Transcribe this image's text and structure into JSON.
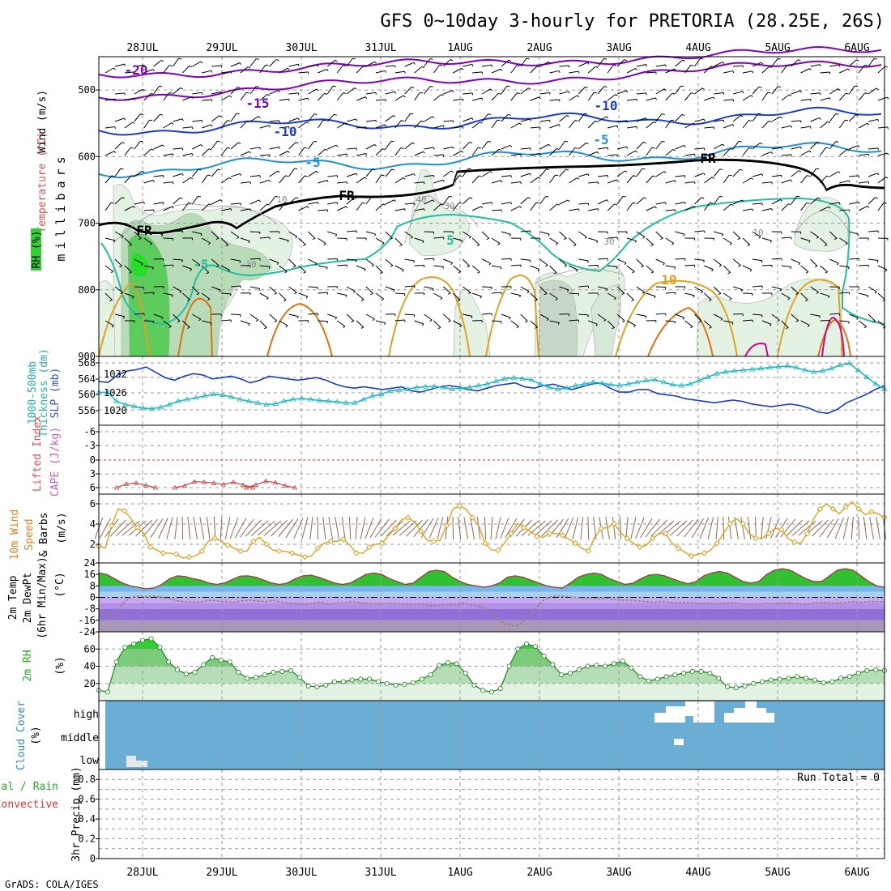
{
  "title": "GFS 0~10day 3-hourly for PRETORIA (28.25E, 26S)",
  "footer": "GrADS: COLA/IGES",
  "dates": [
    "28JUL",
    "29JUL",
    "30JUL",
    "31JUL",
    "1AUG",
    "2AUG",
    "3AUG",
    "4AUG",
    "5AUG",
    "6AUG"
  ],
  "colors": {
    "purple": "#8000c0",
    "blue": "#1a3cd0",
    "lightblue": "#1e90d8",
    "teal": "#20c0a0",
    "orange": "#e0a020",
    "darkorange": "#e07010",
    "magenta": "#d00090",
    "rhgreen": "#30d030",
    "cloud": "#6aaed6",
    "rhlight": "#e4f2e4",
    "rhmid": "#b8dcb8"
  },
  "chart_data": [
    {
      "type": "heatmap",
      "name": "upper-air",
      "ylabel_left": [
        "Wind (m/s)",
        "Temperature (°C)",
        "RH (%)"
      ],
      "ylabel": "millibars",
      "ylim": [
        900,
        450
      ],
      "yticks": [
        500,
        600,
        700,
        800,
        900
      ],
      "contour_labels": [
        "-20",
        "-15",
        "-10",
        "-10",
        "-5",
        "-5",
        "FR",
        "FR",
        "FR",
        "5",
        "-5",
        "10",
        "10",
        "30",
        "10",
        "30",
        "30",
        "40"
      ]
    },
    {
      "type": "line",
      "name": "thickness-slp",
      "ylabel": [
        "1000-500mb",
        "Thickness (dm)",
        "SLP (mb)"
      ],
      "yticks_left": [
        "568",
        "564",
        "560",
        "556"
      ],
      "yticks_right": [
        "1032",
        "1026",
        "1020"
      ],
      "series": [
        {
          "name": "SLP",
          "ylim": [
            1012,
            1038
          ],
          "values": [
            1028.5,
            1028.2,
            1031.0,
            1032.5,
            1033.0,
            1034.0,
            1032.0,
            1030.0,
            1029.0,
            1030.5,
            1031.5,
            1031.0,
            1029.5,
            1030.0,
            1030.5,
            1029.5,
            1028.0,
            1029.0,
            1030.5,
            1030.0,
            1029.5,
            1029.0,
            1029.5,
            1030.0,
            1029.0,
            1027.5,
            1026.5,
            1026.0,
            1026.5,
            1026.0,
            1025.5,
            1026.0,
            1026.5,
            1025.0,
            1024.5,
            1025.5,
            1026.5,
            1027.0,
            1026.5,
            1025.5,
            1025.0,
            1026.0,
            1027.0,
            1027.5,
            1028.0,
            1026.5,
            1026.0,
            1027.0,
            1027.5,
            1026.5,
            1025.5,
            1026.5,
            1027.5,
            1028.0,
            1026.0,
            1024.5,
            1024.5,
            1025.5,
            1025.5,
            1024.0,
            1023.5,
            1023.0,
            1022.0,
            1021.5,
            1021.0,
            1020.5,
            1021.0,
            1021.5,
            1021.0,
            1020.0,
            1019.5,
            1019.0,
            1019.5,
            1020.0,
            1019.5,
            1018.5,
            1017.0,
            1016.5,
            1018.0,
            1020.5,
            1022.0,
            1023.5,
            1025.5,
            1027.0
          ]
        },
        {
          "name": "Thickness",
          "ylim": [
            550,
            570
          ],
          "values": [
            559.5,
            559.6,
            557.0,
            556.0,
            555.5,
            555.0,
            554.8,
            555.2,
            556.0,
            557.0,
            557.5,
            558.0,
            558.5,
            559.0,
            558.8,
            558.2,
            557.5,
            557.0,
            556.5,
            556.0,
            556.2,
            557.0,
            557.5,
            557.8,
            557.5,
            557.2,
            557.0,
            556.8,
            556.5,
            556.5,
            557.5,
            558.5,
            559.0,
            560.0,
            560.2,
            560.5,
            561.0,
            561.2,
            561.3,
            561.0,
            560.5,
            560.8,
            561.0,
            561.5,
            562.0,
            562.8,
            563.5,
            563.8,
            563.5,
            563.2,
            562.0,
            561.0,
            560.5,
            560.8,
            561.5,
            562.0,
            562.5,
            562.2,
            561.8,
            561.5,
            562.0,
            562.5,
            563.0,
            563.2,
            562.5,
            561.8,
            561.5,
            562.0,
            563.0,
            564.0,
            565.0,
            565.5,
            565.8,
            566.0,
            566.2,
            566.5,
            566.8,
            567.0,
            567.2,
            566.8,
            566.0,
            565.5,
            565.8,
            566.5,
            567.5,
            568.0,
            566.0,
            564.0,
            562.0,
            560.5
          ]
        }
      ]
    },
    {
      "type": "line",
      "name": "lifted-index-cape",
      "ylabel": [
        "Lifted Index",
        "CAPE (J/kg)"
      ],
      "yticks": [
        "-6",
        "-3",
        "0",
        "3",
        "6"
      ],
      "ylim": [
        6,
        -6
      ],
      "series": [
        {
          "name": "Lifted Index",
          "segments": [
            [
              6.0,
              5.2,
              5.0,
              5.5,
              6.0
            ],
            [
              6.0,
              5.6,
              4.7,
              4.8,
              5.0,
              5.3,
              4.8,
              5.4,
              6.0
            ],
            [
              6.0,
              5.4,
              4.6,
              4.9,
              5.6,
              6.0
            ]
          ]
        }
      ]
    },
    {
      "type": "line",
      "name": "10m-wind",
      "ylabel": [
        "10m Wind",
        "Speed",
        "& Barbs",
        "(m/s)"
      ],
      "yticks": [
        "6",
        "4",
        "2"
      ],
      "ylim": [
        0,
        7
      ],
      "series": [
        {
          "name": "Speed",
          "values": [
            1.7,
            1.5,
            3.8,
            5.5,
            5.3,
            4.5,
            3.6,
            3.0,
            1.6,
            1.3,
            1.0,
            1.0,
            0.9,
            0.5,
            0.6,
            0.7,
            1.2,
            2.2,
            2.5,
            2.2,
            1.8,
            1.5,
            1.2,
            1.2,
            2.2,
            2.6,
            1.9,
            1.3,
            1.2,
            1.2,
            1.0,
            0.8,
            0.6,
            0.7,
            1.5,
            2.0,
            2.2,
            2.2,
            2.4,
            1.8,
            1.0,
            1.0,
            1.6,
            1.9,
            2.0,
            2.8,
            3.5,
            4.4,
            4.6,
            4.2,
            3.2,
            2.3,
            2.2,
            2.3,
            3.8,
            5.5,
            5.8,
            5.5,
            4.6,
            3.8,
            2.0,
            1.3,
            1.3,
            2.0,
            3.0,
            4.0,
            3.6,
            3.2,
            2.7,
            2.6,
            3.0,
            3.0,
            2.8,
            2.4,
            2.0,
            1.5,
            1.2,
            2.6,
            3.5,
            3.6,
            4.0,
            3.1,
            2.5,
            2.0,
            1.6,
            1.8,
            2.5,
            3.0,
            3.0,
            2.0,
            1.5,
            1.1,
            0.7,
            0.9,
            1.0,
            1.3,
            2.0,
            3.0,
            4.0,
            4.5,
            4.0,
            3.0,
            2.5,
            2.5,
            3.0,
            3.5,
            3.4,
            2.5,
            2.1,
            2.0,
            3.0,
            4.5,
            5.5,
            6.0,
            5.5,
            5.0,
            5.7,
            6.2,
            5.5,
            4.9,
            5.2,
            5.0,
            4.6
          ]
        }
      ]
    },
    {
      "type": "area",
      "name": "2m-temp",
      "ylabel": [
        "2m Temp",
        "2m DewPt",
        "(6hr Min/Max)",
        "(°C)"
      ],
      "yticks": [
        "24",
        "16",
        "8",
        "0",
        "-8",
        "-16",
        "-24"
      ],
      "ylim": [
        -24,
        24
      ],
      "series": [
        {
          "name": "Temperature",
          "values": [
            17,
            16,
            13,
            10,
            8,
            7,
            6,
            6.5,
            9,
            13,
            15,
            14.5,
            13,
            12,
            10,
            9,
            10,
            12.5,
            14.8,
            15,
            14,
            12,
            10,
            9,
            10,
            13,
            15,
            15.5,
            14,
            12,
            10,
            9,
            10,
            13,
            16,
            17,
            16,
            13,
            11,
            9,
            10,
            14,
            18,
            19,
            18,
            14,
            11,
            9,
            8,
            7,
            8,
            10,
            14,
            15,
            14,
            12,
            10,
            8,
            7,
            6.5,
            10,
            14,
            16,
            17,
            16,
            13,
            11,
            9,
            10,
            13,
            15.5,
            16,
            15,
            13,
            11,
            9.5,
            11,
            15,
            17,
            18,
            17,
            14,
            11,
            10,
            11,
            16,
            19,
            20,
            19,
            16,
            13,
            11,
            11,
            15,
            19,
            20,
            19,
            15,
            11,
            8,
            7
          ]
        },
        {
          "name": "DewPoint",
          "values": [
            -8,
            -12,
            -15,
            -4,
            0,
            1,
            0.5,
            1,
            0,
            -1,
            -2.5,
            -3,
            -3.5,
            -3,
            -2,
            -2.5,
            -3,
            -3.5,
            -2.5,
            -2,
            -2.5,
            -3,
            -2,
            -3.5,
            -4,
            -4.5,
            -5,
            -4,
            -3.5,
            -5,
            -4,
            -3.5,
            -3,
            -4,
            -4,
            -4.5,
            -4.5,
            -4,
            -4.5,
            -5,
            -4.5,
            -5,
            -6,
            -5.5,
            -5,
            -5,
            -4,
            -5,
            -6,
            -9,
            -14,
            -18,
            -20,
            -19,
            -14,
            -8,
            -2,
            0.5,
            1,
            0.5,
            0,
            -0.5,
            -0.5,
            -1,
            -0.5,
            -1.5,
            -2,
            -2,
            -2.5,
            -3,
            -3.5,
            -3,
            -3.5,
            -4,
            -3.5,
            -4,
            -4.5,
            -4,
            -4.5,
            -4,
            -3.5,
            -4.5,
            -5,
            -5,
            -4,
            -4.5,
            -4,
            -4,
            -4.5,
            -5,
            -4,
            -3.5,
            -4,
            -4,
            -3.5,
            -3,
            -3.5,
            -3,
            -3,
            -3
          ]
        }
      ]
    },
    {
      "type": "area",
      "name": "2m-rh",
      "ylabel": [
        "2m RH",
        "(%)"
      ],
      "yticks": [
        "60",
        "40",
        "20"
      ],
      "ylim": [
        0,
        80
      ],
      "series": [
        {
          "name": "RH",
          "values": [
            12,
            10,
            45,
            62,
            66,
            70,
            72,
            62,
            45,
            36,
            31,
            33,
            42,
            50,
            47,
            45,
            33,
            26,
            27,
            30,
            33,
            34,
            35,
            27,
            17,
            16,
            18,
            22,
            22,
            24,
            25,
            25,
            22,
            20,
            18,
            19,
            21,
            25,
            30,
            41,
            44,
            43,
            32,
            18,
            12,
            10,
            14,
            40,
            60,
            66,
            63,
            52,
            42,
            30,
            32,
            36,
            40,
            41,
            40,
            43,
            46,
            38,
            28,
            23,
            25,
            28,
            30,
            32,
            34,
            34,
            32,
            26,
            16,
            15,
            17,
            20,
            22,
            24,
            25,
            26,
            28,
            26,
            24,
            21,
            22,
            26,
            28,
            32,
            35,
            36,
            35
          ]
        }
      ]
    },
    {
      "type": "heatmap",
      "name": "cloud-cover",
      "ylabel": [
        "Cloud Cover",
        "(%)"
      ],
      "levels": [
        "high",
        "middle",
        "low"
      ]
    },
    {
      "type": "bar",
      "name": "precip",
      "ylabel": [
        "3hr Precip (mm)"
      ],
      "ylabel_left": [
        "Total / Rain",
        "Convective"
      ],
      "yticks": [
        "0.8",
        "0.6",
        "0.4",
        "0.2",
        "0"
      ],
      "ylim": [
        0,
        0.9
      ],
      "run_total": "Run Total = 0",
      "values": []
    }
  ]
}
